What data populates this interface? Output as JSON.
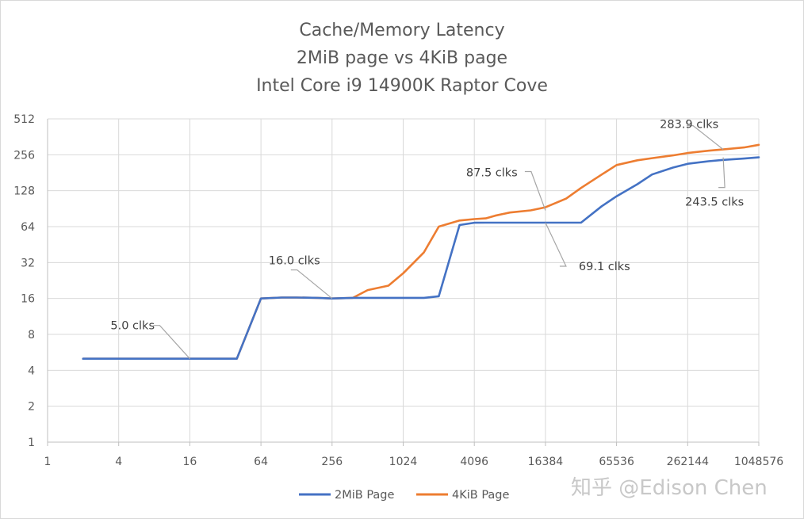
{
  "chart_data": {
    "type": "line",
    "title": [
      "Cache/Memory Latency",
      "2MiB page vs 4KiB page",
      "Intel Core i9 14900K Raptor Cove"
    ],
    "xlabel": "",
    "ylabel": "",
    "x_scale": "log2",
    "y_scale": "log2",
    "xlim": [
      1,
      1048576
    ],
    "ylim": [
      1,
      512
    ],
    "x_ticks": [
      "1",
      "4",
      "16",
      "64",
      "256",
      "1024",
      "4096",
      "16384",
      "65536",
      "262144",
      "1048576"
    ],
    "y_ticks": [
      "1",
      "2",
      "4",
      "8",
      "16",
      "32",
      "64",
      "128",
      "256",
      "512"
    ],
    "grid": true,
    "legend_position": "bottom",
    "series": [
      {
        "name": "2MiB Page",
        "color": "#4472c4",
        "x": [
          2,
          4,
          8,
          16,
          32,
          40,
          64,
          96,
          128,
          192,
          256,
          384,
          512,
          768,
          1024,
          1536,
          2048,
          3072,
          4096,
          5120,
          6144,
          8192,
          12288,
          16384,
          24576,
          32768,
          49152,
          65536,
          98304,
          131072,
          196608,
          262144,
          393216,
          524288,
          786432,
          1048576
        ],
        "y": [
          5,
          5,
          5,
          5,
          5,
          5,
          16,
          16.3,
          16.3,
          16.2,
          16,
          16.2,
          16.2,
          16.2,
          16.2,
          16.2,
          16.7,
          66,
          69,
          69.1,
          69.1,
          69.1,
          69.1,
          69.1,
          69.1,
          69.1,
          95,
          115,
          145,
          175,
          200,
          215,
          226,
          232,
          238,
          243.5
        ]
      },
      {
        "name": "4KiB Page",
        "color": "#ed7d31",
        "x": [
          2,
          4,
          8,
          16,
          32,
          40,
          64,
          96,
          128,
          192,
          256,
          384,
          512,
          768,
          1024,
          1536,
          2048,
          3072,
          4096,
          5120,
          6144,
          8192,
          12288,
          16384,
          24576,
          32768,
          49152,
          65536,
          98304,
          131072,
          196608,
          262144,
          393216,
          524288,
          786432,
          1048576
        ],
        "y": [
          5,
          5,
          5,
          5,
          5,
          5,
          16,
          16.3,
          16.3,
          16.2,
          16,
          16.2,
          18.8,
          20.5,
          26,
          39,
          64,
          72,
          74,
          75,
          79,
          84,
          87.5,
          93,
          110,
          135,
          175,
          210,
          230,
          240,
          253,
          265,
          277,
          283.9,
          295,
          310
        ]
      }
    ],
    "annotations": [
      {
        "text": "5.0 clks",
        "x": 16,
        "y": 5
      },
      {
        "text": "16.0 clks",
        "x": 256,
        "y": 16
      },
      {
        "text": "87.5 clks",
        "x": 16384,
        "y": 87.5
      },
      {
        "text": "69.1 clks",
        "x": 16384,
        "y": 69.1
      },
      {
        "text": "283.9 clks",
        "x": 524288,
        "y": 283.9
      },
      {
        "text": "243.5 clks",
        "x": 524288,
        "y": 243.5
      }
    ]
  },
  "watermark": "知乎 @Edison Chen"
}
